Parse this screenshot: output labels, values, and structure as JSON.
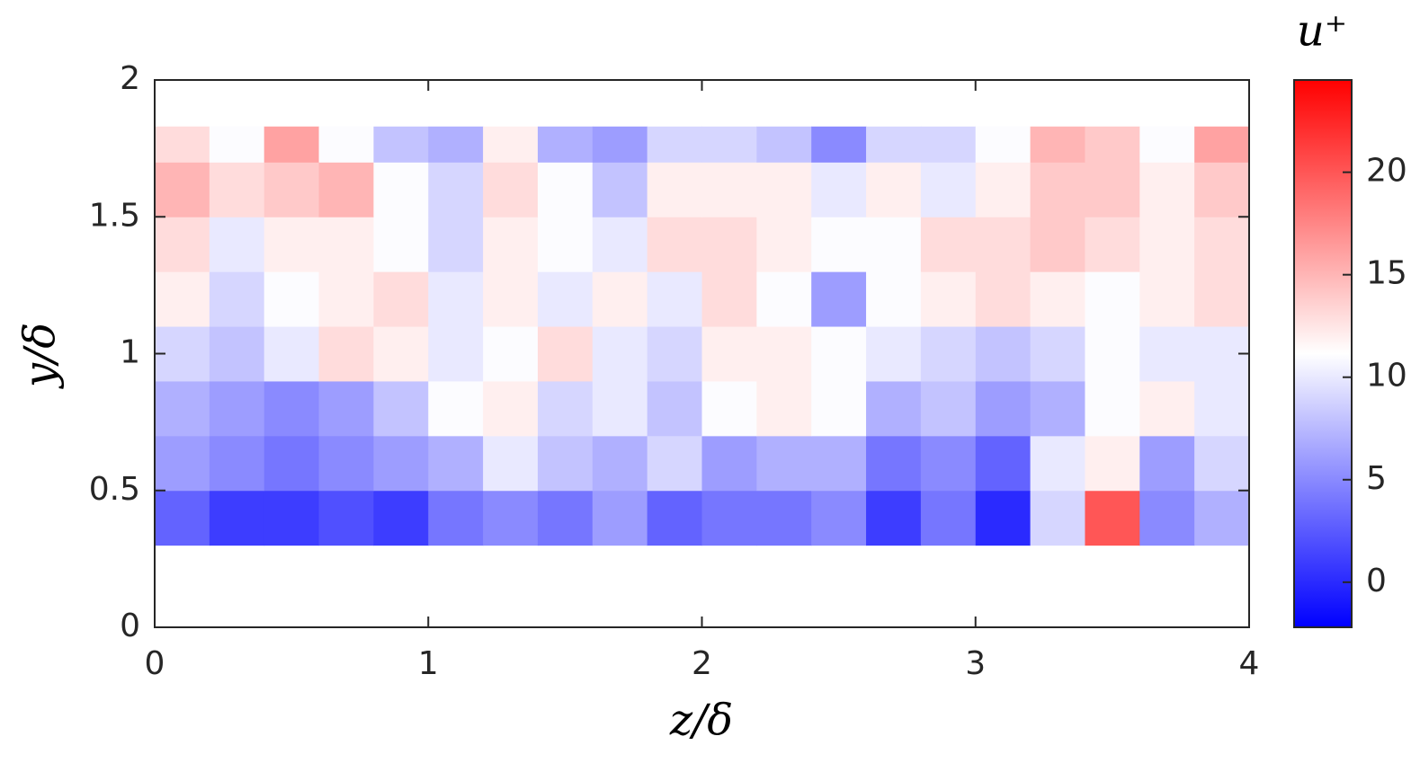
{
  "chart_data": {
    "type": "heatmap",
    "xlabel": "z/δ",
    "ylabel": "y/δ",
    "colorbar_label": "u⁺",
    "xlim": [
      0,
      4
    ],
    "ylim": [
      0,
      2
    ],
    "xticks": [
      0,
      1,
      2,
      3,
      4
    ],
    "yticks": [
      0,
      0.5,
      1,
      1.5,
      2
    ],
    "xbins": [
      0,
      0.2,
      0.4,
      0.6,
      0.8,
      1.0,
      1.2,
      1.4,
      1.6,
      1.8,
      2.0,
      2.2,
      2.4,
      2.6,
      2.8,
      3.0,
      3.2,
      3.4,
      3.6,
      3.8,
      4.0
    ],
    "ybins": [
      0.3,
      0.5,
      0.7,
      0.9,
      1.1,
      1.3,
      1.5,
      1.7,
      1.83
    ],
    "values": [
      [
        3,
        1,
        1,
        2,
        1,
        4,
        5,
        4,
        6,
        3,
        4,
        4,
        5,
        1,
        4,
        0,
        9,
        20,
        5,
        7
      ],
      [
        6,
        5,
        4,
        5,
        6,
        7,
        10,
        8,
        7,
        9,
        6,
        7,
        7,
        4,
        5,
        3,
        10,
        12,
        6,
        9
      ],
      [
        7,
        6,
        5,
        6,
        8,
        11,
        12,
        9,
        10,
        8,
        11,
        12,
        11,
        7,
        8,
        6,
        7,
        11,
        12,
        10
      ],
      [
        9,
        8,
        10,
        13,
        12,
        10,
        11,
        13,
        10,
        9,
        12,
        12,
        11,
        10,
        9,
        8,
        9,
        11,
        10,
        10
      ],
      [
        12,
        9,
        11,
        12,
        13,
        10,
        12,
        10,
        12,
        10,
        13,
        11,
        6,
        11,
        12,
        13,
        12,
        11,
        12,
        13
      ],
      [
        13,
        10,
        12,
        12,
        11,
        9,
        12,
        11,
        10,
        13,
        13,
        12,
        11,
        11,
        13,
        13,
        14,
        13,
        12,
        13
      ],
      [
        15,
        13,
        14,
        15,
        11,
        9,
        13,
        11,
        8,
        12,
        12,
        12,
        10,
        12,
        10,
        12,
        14,
        14,
        12,
        14
      ],
      [
        13,
        11,
        16,
        11,
        8,
        7,
        12,
        7,
        6,
        9,
        9,
        8,
        5,
        9,
        9,
        11,
        15,
        14,
        11,
        16
      ]
    ],
    "clim": [
      -2.2,
      24.5
    ],
    "cticks": [
      0,
      5,
      10,
      15,
      20
    ],
    "colors": {
      "low": "#0000ff",
      "mid": "#ffffff",
      "high": "#ff0000"
    }
  }
}
